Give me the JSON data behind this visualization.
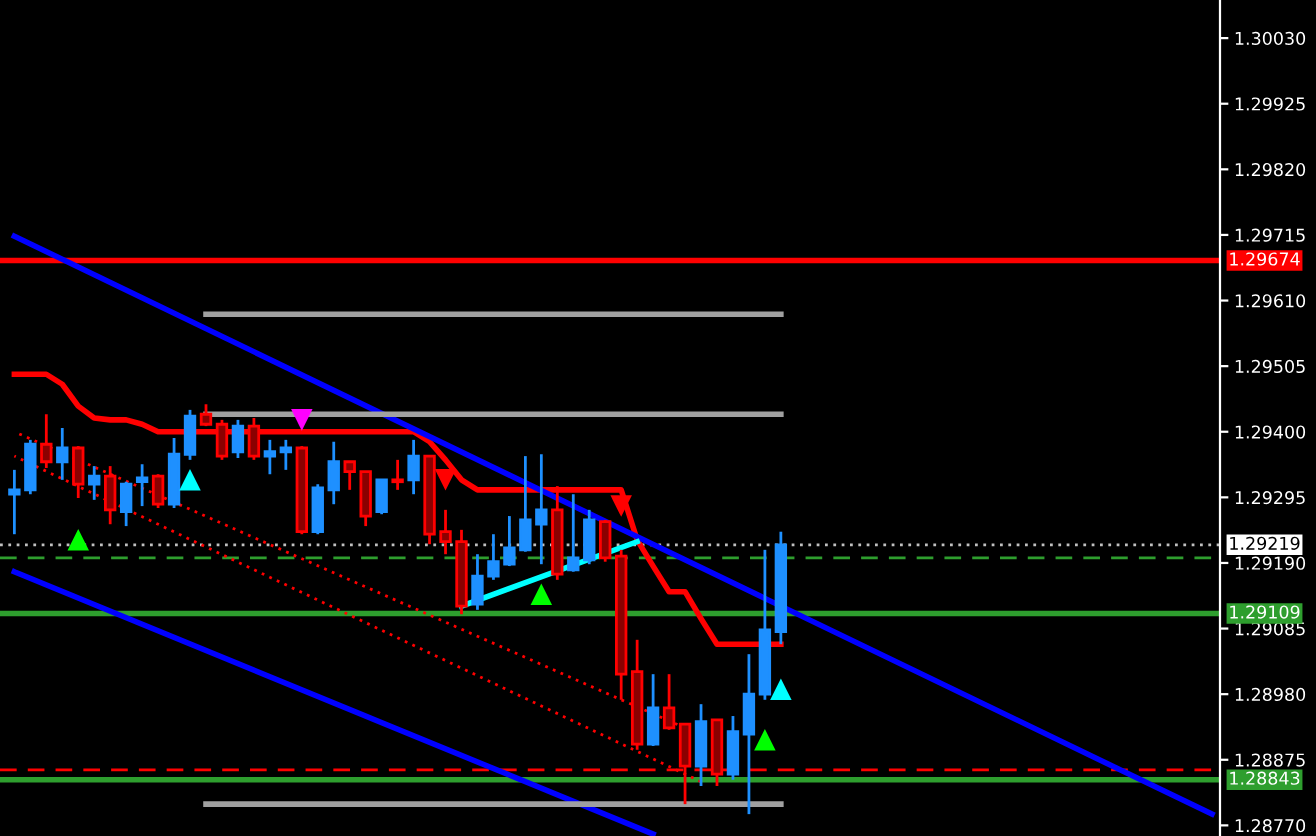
{
  "chart_data": {
    "type": "candlestick",
    "categories": [
      null,
      null,
      null,
      null,
      null,
      null,
      null,
      null,
      null,
      null,
      null,
      null,
      null,
      null,
      null,
      null,
      null,
      null,
      null,
      null,
      null,
      null,
      null,
      null,
      null,
      null,
      null,
      null,
      null,
      null,
      null,
      null,
      null,
      null,
      null,
      null,
      null,
      null,
      null,
      null,
      null,
      null,
      null,
      null,
      null,
      null,
      null,
      null,
      null,
      null,
      null,
      null,
      null,
      null,
      null,
      null,
      null,
      null,
      null,
      null,
      null,
      null,
      null,
      null,
      null,
      null,
      null,
      null,
      null,
      null,
      null,
      null,
      null,
      null,
      null,
      null
    ],
    "ohlc": [
      [
        1.293,
        1.29339,
        1.29236,
        1.29307
      ],
      [
        1.29307,
        1.29387,
        1.293,
        1.2938
      ],
      [
        1.2938,
        1.29428,
        1.29342,
        1.29352
      ],
      [
        1.29352,
        1.29406,
        1.29323,
        1.29374
      ],
      [
        1.29374,
        1.29377,
        1.29294,
        1.29316
      ],
      [
        1.29316,
        1.29345,
        1.29291,
        1.29329
      ],
      [
        1.29329,
        1.29345,
        1.29252,
        1.29275
      ],
      [
        1.29272,
        1.2932,
        1.29249,
        1.29316
      ],
      [
        1.2932,
        1.29348,
        1.29281,
        1.29326
      ],
      [
        1.29329,
        1.29332,
        1.29278,
        1.29284
      ],
      [
        1.29284,
        1.2939,
        1.29278,
        1.29364
      ],
      [
        1.29364,
        1.29435,
        1.29355,
        1.29425
      ],
      [
        1.29428,
        1.29444,
        1.29409,
        1.29412
      ],
      [
        1.29412,
        1.29419,
        1.29355,
        1.29361
      ],
      [
        1.29368,
        1.29419,
        1.29358,
        1.29409
      ],
      [
        1.29409,
        1.29422,
        1.29355,
        1.29361
      ],
      [
        1.29361,
        1.29387,
        1.29332,
        1.29368
      ],
      [
        1.29368,
        1.29387,
        1.29339,
        1.29374
      ],
      [
        1.29374,
        1.29377,
        1.29236,
        1.2924
      ],
      [
        1.2924,
        1.29316,
        1.29236,
        1.2931
      ],
      [
        1.29307,
        1.29384,
        1.29284,
        1.29352
      ],
      [
        1.29352,
        1.29352,
        1.29307,
        1.29336
      ],
      [
        1.29336,
        1.29336,
        1.29249,
        1.29265
      ],
      [
        1.29272,
        1.29323,
        1.29268,
        1.29323
      ],
      [
        1.29323,
        1.29355,
        1.29307,
        1.2932
      ],
      [
        1.29323,
        1.29387,
        1.293,
        1.29361
      ],
      [
        1.29361,
        1.29361,
        1.2922,
        1.29236
      ],
      [
        1.2924,
        1.29275,
        1.29204,
        1.29224
      ],
      [
        1.29224,
        1.29243,
        1.29108,
        1.29121
      ],
      [
        1.29124,
        1.29204,
        1.29115,
        1.29169
      ],
      [
        1.29169,
        1.29236,
        1.29163,
        1.29192
      ],
      [
        1.29188,
        1.29265,
        1.29185,
        1.29214
      ],
      [
        1.29211,
        1.29361,
        1.29208,
        1.29259
      ],
      [
        1.29252,
        1.29364,
        1.29188,
        1.29275
      ],
      [
        1.29275,
        1.29313,
        1.29163,
        1.29172
      ],
      [
        1.29179,
        1.293,
        1.29176,
        1.29198
      ],
      [
        1.29195,
        1.29275,
        1.29188,
        1.29259
      ],
      [
        1.29256,
        1.29259,
        1.29192,
        1.29198
      ],
      [
        1.29201,
        1.29211,
        1.28971,
        1.29012
      ],
      [
        1.29016,
        1.29067,
        1.28891,
        1.289
      ],
      [
        1.289,
        1.29012,
        1.28897,
        1.28958
      ],
      [
        1.28958,
        1.29012,
        1.28923,
        1.28926
      ],
      [
        1.28932,
        1.28932,
        1.28804,
        1.28865
      ],
      [
        1.28865,
        1.28964,
        1.28833,
        1.28936
      ],
      [
        1.28939,
        1.28939,
        1.28833,
        1.28852
      ],
      [
        1.28852,
        1.28945,
        1.28843,
        1.2892
      ],
      [
        1.28916,
        1.29044,
        1.28788,
        1.2898
      ],
      [
        1.2898,
        1.29211,
        1.28971,
        1.29083
      ],
      [
        1.2908,
        1.2924,
        1.2906,
        1.29219
      ],
      null,
      null,
      null,
      null,
      null,
      null,
      null,
      null,
      null,
      null,
      null,
      null,
      null,
      null,
      null,
      null,
      null,
      null,
      null,
      null,
      null,
      null,
      null,
      null,
      null,
      null,
      null
    ],
    "colors": [
      "#1e90ff",
      "#1e90ff",
      "#ff0000",
      "#1e90ff",
      "#ff0000",
      "#1e90ff",
      "#ff0000",
      "#1e90ff",
      "#1e90ff",
      "#ff0000",
      "#1e90ff",
      "#1e90ff",
      "#ff0000",
      "#ff0000",
      "#1e90ff",
      "#ff0000",
      "#1e90ff",
      "#1e90ff",
      "#ff0000",
      "#1e90ff",
      "#1e90ff",
      "#ff0000",
      "#ff0000",
      "#1e90ff",
      "#ff0000",
      "#1e90ff",
      "#ff0000",
      "#ff0000",
      "#ff0000",
      "#1e90ff",
      "#1e90ff",
      "#1e90ff",
      "#1e90ff",
      "#1e90ff",
      "#ff0000",
      "#1e90ff",
      "#1e90ff",
      "#ff0000",
      "#ff0000",
      "#ff0000",
      "#1e90ff",
      "#ff0000",
      "#ff0000",
      "#1e90ff",
      "#ff0000",
      "#1e90ff",
      "#1e90ff",
      "#1e90ff",
      "#1e90ff",
      null,
      null,
      null,
      null,
      null,
      null,
      null,
      null,
      null,
      null,
      null,
      null,
      null,
      null,
      null,
      null,
      null,
      null,
      null,
      null,
      null,
      null,
      null,
      null,
      null,
      null,
      null
    ],
    "series": [
      {
        "type": "line",
        "color": "#ff0000",
        "values": [
          1.29492,
          1.29492,
          1.29492,
          1.29476,
          1.29441,
          1.29422,
          1.29419,
          1.29419,
          1.29412,
          1.294,
          1.294,
          1.294,
          1.294,
          1.294,
          1.294,
          1.294,
          1.294,
          1.294,
          1.294,
          1.294,
          1.294,
          1.294,
          1.294,
          1.294,
          1.294,
          1.294,
          1.29384,
          1.29355,
          1.29323,
          1.29307,
          1.29307,
          1.29307,
          1.29307,
          1.29307,
          1.29307,
          1.29307,
          1.29307,
          1.29307,
          1.29307,
          1.29227,
          1.29185,
          1.29144,
          1.29144,
          1.29101,
          1.2906,
          1.2906,
          1.2906,
          1.2906,
          1.2906,
          null,
          null,
          null,
          null,
          null,
          null,
          null,
          null,
          null,
          null,
          null,
          null,
          null,
          null,
          null,
          null,
          null,
          null,
          null,
          null,
          null,
          null,
          null,
          null,
          null,
          null,
          null
        ]
      },
      {
        "type": "line",
        "color": "#0000ff",
        "values": [
          1.29713,
          null,
          null,
          null,
          null,
          null,
          null,
          null,
          null,
          null,
          null,
          null,
          null,
          null,
          null,
          null,
          null,
          null,
          null,
          null,
          null,
          null,
          null,
          null,
          null,
          null,
          null,
          null,
          null,
          null,
          null,
          null,
          null,
          null,
          null,
          null,
          null,
          null,
          null,
          null,
          null,
          null,
          null,
          null,
          null,
          null,
          null,
          null,
          null,
          null,
          null,
          null,
          null,
          null,
          null,
          null,
          null,
          null,
          null,
          null,
          null,
          null,
          null,
          null,
          null,
          null,
          null,
          null,
          null,
          null,
          null,
          null,
          null,
          null,
          null,
          1.28788
        ]
      },
      {
        "type": "line",
        "color": "#0000ff",
        "values": [
          1.29176,
          null,
          null,
          null,
          null,
          null,
          null,
          null,
          null,
          null,
          null,
          null,
          null,
          null,
          null,
          null,
          null,
          null,
          null,
          null,
          null,
          null,
          null,
          null,
          null,
          null,
          null,
          null,
          null,
          null,
          null,
          null,
          null,
          null,
          null,
          null,
          null,
          null,
          null,
          null,
          1.28756,
          null,
          null,
          null,
          null,
          null,
          null,
          null,
          null,
          null,
          null,
          null,
          null,
          null,
          null,
          null,
          null,
          null,
          null,
          null,
          null,
          null,
          null,
          null,
          null,
          null,
          null,
          null,
          null,
          null,
          null,
          null,
          null,
          null,
          null,
          null
        ]
      },
      {
        "type": "line",
        "color": "#ff0000",
        "line_style": "dotted",
        "values": [
          1.294,
          null,
          null,
          null,
          null,
          null,
          null,
          null,
          null,
          null,
          null,
          null,
          null,
          null,
          null,
          null,
          null,
          null,
          null,
          null,
          null,
          null,
          null,
          null,
          null,
          null,
          null,
          null,
          null,
          null,
          null,
          null,
          null,
          null,
          null,
          null,
          null,
          null,
          null,
          null,
          null,
          null,
          1.28926,
          null,
          null,
          null,
          null,
          null,
          null,
          null,
          null,
          null,
          null,
          null,
          null,
          null,
          null,
          null,
          null,
          null,
          null,
          null,
          null,
          null,
          null,
          null,
          null,
          null,
          null,
          null,
          null,
          null,
          null,
          null,
          null,
          null
        ]
      },
      {
        "type": "line",
        "color": "#ff0000",
        "line_style": "dotted",
        "values": [
          1.29361,
          null,
          null,
          null,
          null,
          null,
          null,
          null,
          null,
          null,
          null,
          null,
          null,
          null,
          null,
          null,
          null,
          null,
          null,
          null,
          null,
          null,
          null,
          null,
          null,
          null,
          null,
          null,
          null,
          null,
          null,
          null,
          null,
          null,
          null,
          null,
          null,
          null,
          null,
          null,
          null,
          null,
          null,
          1.2884,
          null,
          null,
          null,
          null,
          null,
          null,
          null,
          null,
          null,
          null,
          null,
          null,
          null,
          null,
          null,
          null,
          null,
          null,
          null,
          null,
          null,
          null,
          null,
          null,
          null,
          null,
          null,
          null,
          null,
          null,
          null,
          null
        ]
      },
      {
        "type": "line",
        "color": "#00ffff",
        "values": [
          null,
          null,
          null,
          null,
          null,
          null,
          null,
          null,
          null,
          null,
          null,
          null,
          null,
          null,
          null,
          null,
          null,
          null,
          null,
          null,
          null,
          null,
          null,
          null,
          null,
          null,
          null,
          null,
          1.29121,
          null,
          null,
          null,
          null,
          null,
          null,
          null,
          null,
          null,
          null,
          1.29224,
          null,
          null,
          null,
          null,
          null,
          null,
          null,
          null,
          null,
          null,
          null,
          null,
          null,
          null,
          null,
          null,
          null,
          null,
          null,
          null,
          null,
          null,
          null,
          null,
          null,
          null,
          null,
          null,
          null,
          null,
          null,
          null,
          null,
          null,
          null,
          null
        ]
      },
      {
        "type": "line",
        "color": "#a0a0a0",
        "values": [
          null,
          null,
          null,
          null,
          null,
          null,
          null,
          null,
          null,
          null,
          null,
          null,
          1.29588,
          null,
          null,
          null,
          null,
          null,
          null,
          null,
          null,
          null,
          null,
          null,
          null,
          null,
          null,
          null,
          null,
          null,
          null,
          null,
          null,
          null,
          null,
          null,
          null,
          null,
          null,
          null,
          null,
          null,
          null,
          null,
          null,
          null,
          null,
          null,
          1.29588,
          null,
          null,
          null,
          null,
          null,
          null,
          null,
          null,
          null,
          null,
          null,
          null,
          null,
          null,
          null,
          null,
          null,
          null,
          null,
          null,
          null,
          null,
          null,
          null,
          null,
          null,
          null
        ]
      },
      {
        "type": "line",
        "color": "#a0a0a0",
        "values": [
          null,
          null,
          null,
          null,
          null,
          null,
          null,
          null,
          null,
          null,
          null,
          null,
          1.29428,
          null,
          null,
          null,
          null,
          null,
          null,
          null,
          null,
          null,
          null,
          null,
          null,
          null,
          null,
          null,
          null,
          null,
          null,
          null,
          null,
          null,
          null,
          null,
          null,
          null,
          null,
          null,
          null,
          null,
          null,
          null,
          null,
          null,
          null,
          null,
          1.29428,
          null,
          null,
          null,
          null,
          null,
          null,
          null,
          null,
          null,
          null,
          null,
          null,
          null,
          null,
          null,
          null,
          null,
          null,
          null,
          null,
          null,
          null,
          null,
          null,
          null,
          null,
          null
        ]
      },
      {
        "type": "line",
        "color": "#a0a0a0",
        "values": [
          null,
          null,
          null,
          null,
          null,
          null,
          null,
          null,
          null,
          null,
          null,
          null,
          1.28804,
          null,
          null,
          null,
          null,
          null,
          null,
          null,
          null,
          null,
          null,
          null,
          null,
          null,
          null,
          null,
          null,
          null,
          null,
          null,
          null,
          null,
          null,
          null,
          null,
          null,
          null,
          null,
          null,
          null,
          null,
          null,
          null,
          null,
          null,
          null,
          1.28804,
          null,
          null,
          null,
          null,
          null,
          null,
          null,
          null,
          null,
          null,
          null,
          null,
          null,
          null,
          null,
          null,
          null,
          null,
          null,
          null,
          null,
          null,
          null,
          null,
          null,
          null,
          null
        ]
      },
      {
        "type": "scatter",
        "marker": "triangle",
        "color": "#00ff00",
        "values": [
          null,
          null,
          null,
          null,
          1.29227,
          null,
          null,
          null,
          null,
          null,
          null,
          null,
          null,
          null,
          null,
          null,
          null,
          null,
          null,
          null,
          null,
          null,
          null,
          null,
          null,
          null,
          null,
          null,
          null,
          null,
          null,
          null,
          null,
          1.2914,
          null,
          null,
          null,
          null,
          null,
          null,
          null,
          null,
          null,
          null,
          null,
          null,
          null,
          1.28907,
          null,
          null,
          null,
          null,
          null,
          null,
          null,
          null,
          null,
          null,
          null,
          null,
          null,
          null,
          null,
          null,
          null,
          null,
          null,
          null,
          null,
          null,
          null,
          null,
          null,
          null,
          null,
          null
        ]
      },
      {
        "type": "scatter",
        "marker": "triangle",
        "color": "#00ffff",
        "values": [
          null,
          null,
          null,
          null,
          null,
          null,
          null,
          null,
          null,
          null,
          null,
          1.29323,
          null,
          null,
          null,
          null,
          null,
          null,
          null,
          null,
          null,
          null,
          null,
          null,
          null,
          null,
          null,
          null,
          null,
          null,
          null,
          null,
          null,
          null,
          null,
          null,
          null,
          null,
          null,
          null,
          null,
          null,
          null,
          null,
          null,
          null,
          null,
          null,
          1.28988,
          null,
          null,
          null,
          null,
          null,
          null,
          null,
          null,
          null,
          null,
          null,
          null,
          null,
          null,
          null,
          null,
          null,
          null,
          null,
          null,
          null,
          null,
          null,
          null,
          null,
          null,
          null
        ]
      },
      {
        "type": "scatter",
        "marker": "triangle",
        "color": "#ff00ff",
        "values": [
          null,
          null,
          null,
          null,
          null,
          null,
          null,
          null,
          null,
          null,
          null,
          null,
          null,
          null,
          null,
          null,
          null,
          null,
          1.29419,
          null,
          null,
          null,
          null,
          null,
          null,
          null,
          null,
          null,
          null,
          null,
          null,
          null,
          null,
          null,
          null,
          null,
          null,
          null,
          null,
          null,
          null,
          null,
          null,
          null,
          null,
          null,
          null,
          null,
          null,
          null,
          null,
          null,
          null,
          null,
          null,
          null,
          null,
          null,
          null,
          null,
          null,
          null,
          null,
          null,
          null,
          null,
          null,
          null,
          null,
          null,
          null,
          null,
          null,
          null,
          null,
          null
        ]
      },
      {
        "type": "scatter",
        "marker": "triangle",
        "color": "#ff0000",
        "values": [
          null,
          null,
          null,
          null,
          null,
          null,
          null,
          null,
          null,
          null,
          null,
          null,
          null,
          null,
          null,
          null,
          null,
          null,
          null,
          null,
          null,
          null,
          null,
          null,
          null,
          null,
          null,
          1.29323,
          null,
          null,
          null,
          null,
          null,
          null,
          null,
          null,
          null,
          null,
          1.29281,
          null,
          null,
          null,
          null,
          null,
          null,
          null,
          null,
          null,
          null,
          null,
          null,
          null,
          null,
          null,
          null,
          null,
          null,
          null,
          null,
          null,
          null,
          null,
          null,
          null,
          null,
          null,
          null,
          null,
          null,
          null,
          null,
          null,
          null,
          null,
          null,
          null
        ]
      }
    ],
    "ref_lines": [
      {
        "axis": "y",
        "value": 1.29674,
        "label": "1.29674",
        "color": "#ff0000",
        "line_style": "solid"
      },
      {
        "axis": "y",
        "value": 1.29219,
        "label": "1.29219",
        "color": "#c0c0c0",
        "line_style": "dotted"
      },
      {
        "axis": "y",
        "value": 1.29109,
        "label": "1.29109",
        "color": "#2e9e2e",
        "line_style": "solid"
      },
      {
        "axis": "y",
        "value": 1.28843,
        "label": "1.28843",
        "color": "#2e9e2e",
        "line_style": "solid"
      },
      {
        "axis": "y",
        "value": 1.29198,
        "color": "#2e9e2e",
        "line_style": "dashed"
      },
      {
        "axis": "y",
        "value": 1.28859,
        "color": "#ff0000",
        "line_style": "dashed"
      }
    ],
    "ylim": [
      1.28753,
      1.30091
    ],
    "yticks": [
      {
        "value": 1.3003,
        "label": "1.30030"
      },
      1.29925,
      {
        "value": 1.2982,
        "label": "1.29820"
      },
      1.29715,
      {
        "value": 1.2961,
        "label": "1.29610"
      },
      1.29505,
      {
        "value": 1.294,
        "label": "1.29400"
      },
      1.29295,
      {
        "value": 1.2919,
        "label": "1.29190"
      },
      1.29085,
      {
        "value": 1.2898,
        "label": "1.28980"
      },
      1.28875,
      {
        "value": 1.2877,
        "label": "1.28770"
      }
    ],
    "tick_labels": "y",
    "grid": false,
    "legend": false
  }
}
